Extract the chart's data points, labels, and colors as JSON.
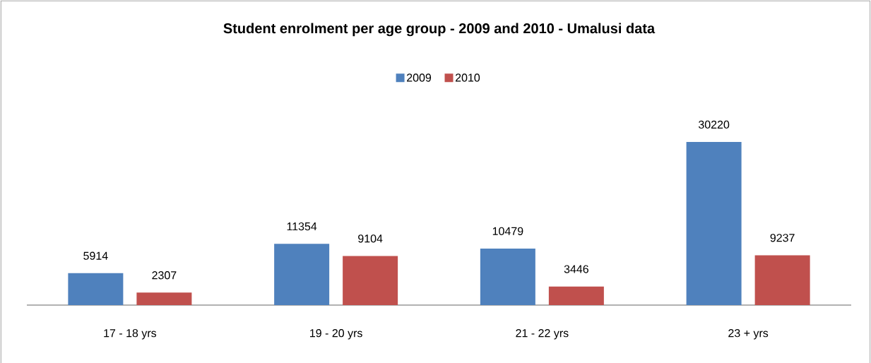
{
  "chart_data": {
    "type": "bar",
    "title": "Student enrolment per age group - 2009 and 2010 - Umalusi data",
    "categories": [
      "17 - 18 yrs",
      "19 - 20 yrs",
      "21 - 22 yrs",
      "23 + yrs"
    ],
    "series": [
      {
        "name": "2009",
        "color": "#4f81bd",
        "values": [
          5914,
          11354,
          10479,
          30220
        ]
      },
      {
        "name": "2010",
        "color": "#c0504d",
        "values": [
          2307,
          9104,
          3446,
          9237
        ]
      }
    ],
    "legend": "top",
    "data_labels": true
  }
}
